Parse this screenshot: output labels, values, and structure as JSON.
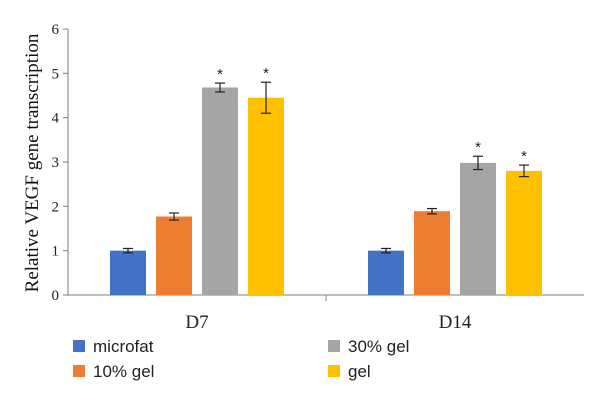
{
  "chart_data": {
    "type": "bar",
    "title": "",
    "xlabel": "",
    "ylabel": "Relative VEGF gene transcription",
    "ylim": [
      0,
      6
    ],
    "yticks": [
      "0",
      "1",
      "2",
      "3",
      "4",
      "5",
      "6"
    ],
    "categories": [
      "D7",
      "D14"
    ],
    "series": [
      {
        "name": "microfat",
        "color": "#4472C4",
        "values": [
          1.0,
          1.0
        ],
        "errors": [
          0.05,
          0.05
        ],
        "significance": [
          "",
          ""
        ]
      },
      {
        "name": "10% gel",
        "color": "#ED7D31",
        "values": [
          1.77,
          1.89
        ],
        "errors": [
          0.08,
          0.06
        ],
        "significance": [
          "",
          ""
        ]
      },
      {
        "name": "30% gel",
        "color": "#A5A5A5",
        "values": [
          4.68,
          2.98
        ],
        "errors": [
          0.1,
          0.15
        ],
        "significance": [
          "*",
          "*"
        ]
      },
      {
        "name": "gel",
        "color": "#FFC000",
        "values": [
          4.45,
          2.8
        ],
        "errors": [
          0.35,
          0.13
        ],
        "significance": [
          "*",
          "*"
        ]
      }
    ],
    "legend_position": "bottom",
    "grid": false
  }
}
